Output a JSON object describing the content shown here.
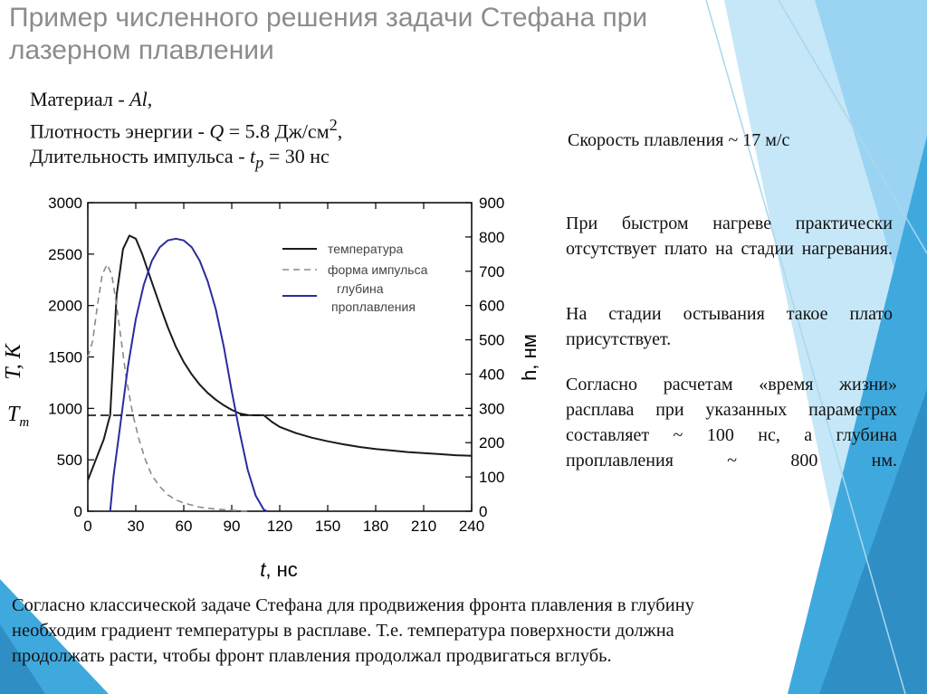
{
  "title": "Пример численного решения задачи Стефана при лазерном плавлении",
  "params": {
    "material_label": "Материал - ",
    "material_value": "Al",
    "energy_label": "Плотность энергии - ",
    "energy_var": "Q",
    "energy_value": " = 5.8 Дж/см",
    "energy_sup": "2",
    "energy_tail": ",",
    "pulse_label": "Длительность импульса - ",
    "pulse_var": "t",
    "pulse_sub": "p",
    "pulse_value": " = 30 нс"
  },
  "speed_text": "Скорость плавления ~ 17 м/с",
  "paragraphs": {
    "p1": "При быстром нагреве практически отсутствует плато на стадии нагревания.",
    "p2": "На стадии остывания такое плато присутствует.",
    "p3": "Согласно расчетам «время жизни» расплава при указанных параметрах составляет ~ 100 нс, а глубина проплавления ~ 800 нм."
  },
  "bottom_text": {
    "line1": "Согласно классической задаче Стефана для продвижения фронта плавления в глубину",
    "line2": "необходим градиент температуры в расплаве. Т.е. температура поверхности должна",
    "line3": "продолжать расти, чтобы фронт плавления продолжал продвигаться вглубь."
  },
  "colors": {
    "title": "#8c8c8c",
    "temperature": "#1a1a1a",
    "pulse": "#8a8a8a",
    "depth": "#2b2b9e",
    "accent_blue": "#3fa9de"
  },
  "chart_data": {
    "type": "line",
    "xlabel_var": "t",
    "xlabel_unit": ", нс",
    "ylabel_left": "T, K",
    "ylabel_right": "h, нм",
    "tm_label": "T",
    "tm_sub": "m",
    "tm_value": 933,
    "xlim": [
      0,
      240
    ],
    "ylim_left": [
      0,
      3000
    ],
    "ylim_right": [
      0,
      900
    ],
    "x_ticks": [
      0,
      30,
      60,
      90,
      120,
      150,
      180,
      210,
      240
    ],
    "y_ticks_left": [
      0,
      500,
      1000,
      1500,
      2000,
      2500,
      3000
    ],
    "y_ticks_right": [
      0,
      100,
      200,
      300,
      400,
      500,
      600,
      700,
      800,
      900
    ],
    "legend": [
      "температура",
      "форма импульса",
      "глубина",
      "проплавления"
    ],
    "legend_position": "top-right",
    "series": [
      {
        "name": "температура",
        "axis": "left",
        "style": "solid",
        "x": [
          0,
          5,
          10,
          13,
          14,
          18,
          22,
          26,
          30,
          34,
          38,
          42,
          46,
          50,
          55,
          60,
          65,
          70,
          75,
          80,
          85,
          90,
          95,
          100,
          105,
          110,
          115,
          120,
          130,
          140,
          150,
          160,
          170,
          180,
          190,
          200,
          210,
          220,
          230,
          240
        ],
        "y": [
          300,
          500,
          700,
          880,
          933,
          2100,
          2550,
          2680,
          2650,
          2500,
          2320,
          2140,
          1960,
          1790,
          1600,
          1450,
          1330,
          1230,
          1150,
          1085,
          1030,
          985,
          950,
          935,
          933,
          933,
          870,
          820,
          760,
          715,
          680,
          650,
          625,
          605,
          590,
          575,
          565,
          555,
          545,
          538
        ]
      },
      {
        "name": "форма импульса",
        "axis": "left",
        "style": "dashed",
        "x": [
          0,
          3,
          6,
          9,
          12,
          15,
          18,
          21,
          24,
          28,
          32,
          36,
          40,
          45,
          50,
          55,
          60,
          70,
          80,
          90,
          100
        ],
        "y": [
          1500,
          1650,
          2000,
          2300,
          2400,
          2300,
          2000,
          1650,
          1300,
          950,
          700,
          500,
          350,
          240,
          160,
          110,
          80,
          40,
          20,
          10,
          0
        ]
      },
      {
        "name": "глубина проплавления",
        "axis": "right",
        "style": "solid",
        "x": [
          14,
          16,
          20,
          25,
          30,
          35,
          40,
          45,
          50,
          55,
          60,
          65,
          70,
          75,
          80,
          85,
          90,
          95,
          100,
          105,
          110,
          112
        ],
        "y": [
          0,
          100,
          240,
          420,
          560,
          660,
          730,
          770,
          790,
          795,
          790,
          770,
          730,
          670,
          590,
          480,
          350,
          230,
          120,
          45,
          5,
          0
        ]
      }
    ]
  }
}
